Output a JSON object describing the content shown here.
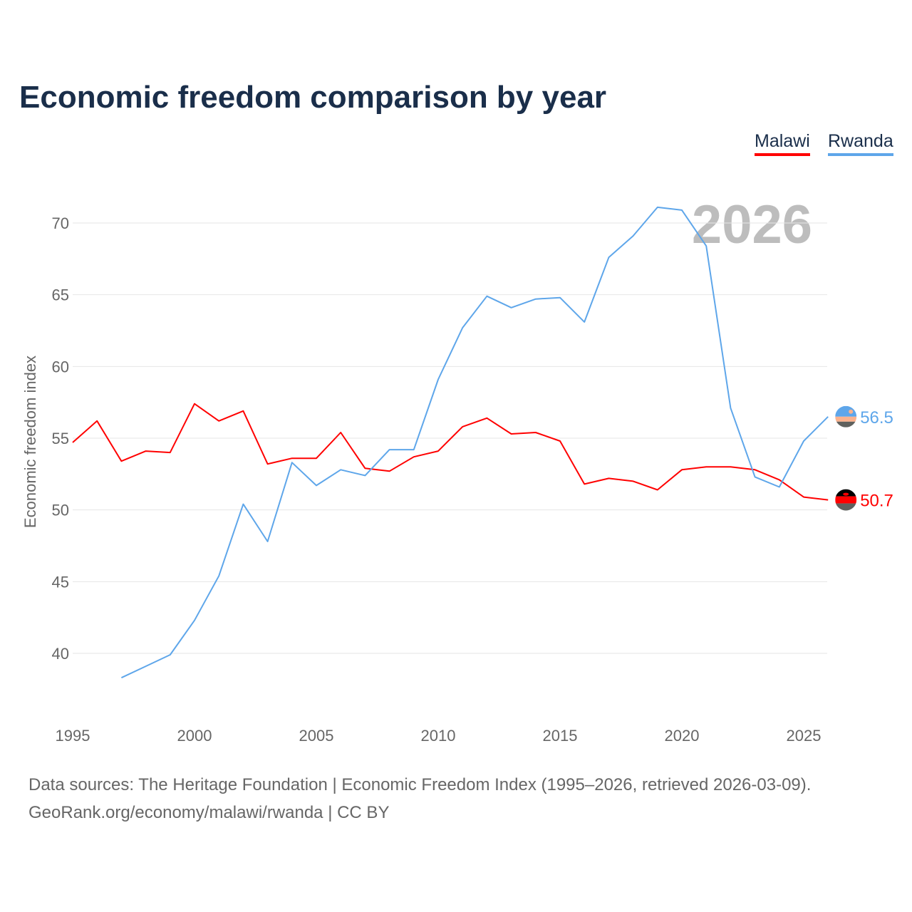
{
  "title": "Economic freedom comparison by year",
  "legend": [
    "Malawi",
    "Rwanda"
  ],
  "footer": {
    "line1": "Data sources: The Heritage Foundation | Economic Freedom Index (1995–2026, retrieved 2026-03-09).",
    "line2": "GeoRank.org/economy/malawi/rwanda | CC BY"
  },
  "chart_data": {
    "type": "line",
    "title": "Economic freedom comparison by year",
    "xlabel": "",
    "ylabel": "Economic freedom index",
    "year_watermark": "2026",
    "xlim": [
      1995,
      2026
    ],
    "ylim": [
      35,
      73
    ],
    "xticks": [
      1995,
      2000,
      2005,
      2010,
      2015,
      2020,
      2025
    ],
    "yticks": [
      40,
      45,
      50,
      55,
      60,
      65,
      70
    ],
    "grid": true,
    "legend_position": "top-right",
    "series": [
      {
        "name": "Malawi",
        "color": "#ff0000",
        "end_label": "50.7",
        "x": [
          1995,
          1996,
          1997,
          1998,
          1999,
          2000,
          2001,
          2002,
          2003,
          2004,
          2005,
          2006,
          2007,
          2008,
          2009,
          2010,
          2011,
          2012,
          2013,
          2014,
          2015,
          2016,
          2017,
          2018,
          2019,
          2020,
          2021,
          2022,
          2023,
          2024,
          2025,
          2026
        ],
        "values": [
          54.7,
          56.2,
          53.4,
          54.1,
          54.0,
          57.4,
          56.2,
          56.9,
          53.2,
          53.6,
          53.6,
          55.4,
          52.9,
          52.7,
          53.7,
          54.1,
          55.8,
          56.4,
          55.3,
          55.4,
          54.8,
          51.8,
          52.2,
          52.0,
          51.4,
          52.8,
          53.0,
          53.0,
          52.8,
          52.1,
          50.9,
          50.7
        ]
      },
      {
        "name": "Rwanda",
        "color": "#5ea6ea",
        "end_label": "56.5",
        "x": [
          1997,
          1998,
          1999,
          2000,
          2001,
          2002,
          2003,
          2004,
          2005,
          2006,
          2007,
          2008,
          2009,
          2010,
          2011,
          2012,
          2013,
          2014,
          2015,
          2016,
          2017,
          2018,
          2019,
          2020,
          2021,
          2022,
          2023,
          2024,
          2025,
          2026
        ],
        "values": [
          38.3,
          39.1,
          39.9,
          42.3,
          45.4,
          50.4,
          47.8,
          53.3,
          51.7,
          52.8,
          52.4,
          54.2,
          54.2,
          59.1,
          62.7,
          64.9,
          64.1,
          64.7,
          64.8,
          63.1,
          67.6,
          69.1,
          71.1,
          70.9,
          68.4,
          57.1,
          52.3,
          51.6,
          54.8,
          56.5
        ]
      }
    ]
  }
}
